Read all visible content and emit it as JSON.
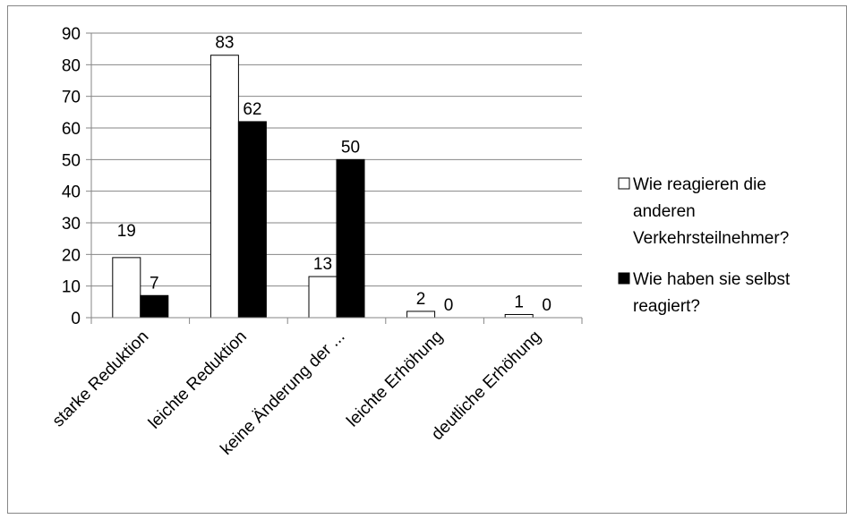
{
  "chart_data": {
    "type": "bar",
    "categories": [
      "starke Reduktion",
      "leichte Reduktion",
      "keine Änderung der ...",
      "leichte Erhöhung",
      "deutliche Erhöhung"
    ],
    "series": [
      {
        "name": "Wie reagieren die anderen Verkehrsteilnehmer?",
        "legend_lines": [
          "Wie reagieren die",
          "anderen",
          "Verkehrsteilnehmer?"
        ],
        "values": [
          19,
          83,
          13,
          2,
          1
        ],
        "data_labels": [
          "19",
          "83",
          "13",
          "2",
          "1"
        ],
        "color": "#ffffff"
      },
      {
        "name": "Wie haben sie selbst reagiert?",
        "legend_lines": [
          "Wie haben sie selbst",
          "reagiert?"
        ],
        "values": [
          7,
          62,
          50,
          0,
          0
        ],
        "data_labels": [
          "7",
          "62",
          "50",
          "0",
          "0"
        ],
        "color": "#000000"
      }
    ],
    "ylim": [
      0,
      90
    ],
    "yticks": [
      "0",
      "10",
      "20",
      "30",
      "40",
      "50",
      "60",
      "70",
      "80",
      "90"
    ],
    "grid": true,
    "legend_position": "right",
    "xlabel": "",
    "ylabel": "",
    "title": ""
  }
}
